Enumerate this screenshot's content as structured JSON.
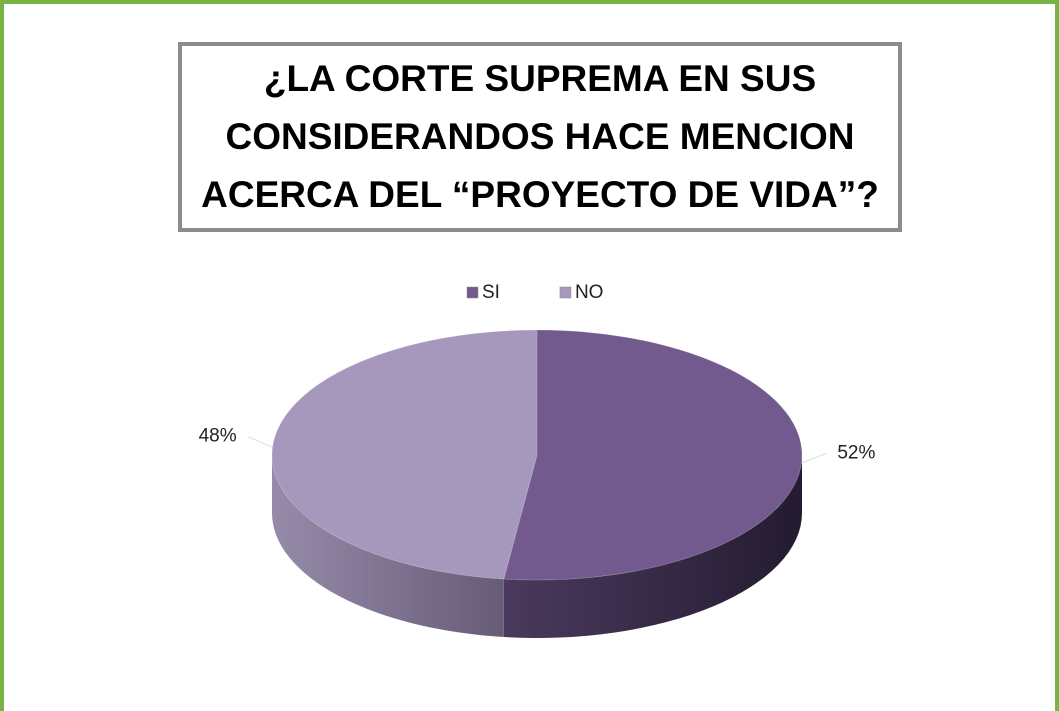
{
  "chart_data": {
    "type": "pie",
    "title": "¿LA CORTE SUPREMA EN SUS CONSIDERANDOS HACE MENCION ACERCA DEL “PROYECTO DE VIDA”?",
    "categories": [
      "SI",
      "NO"
    ],
    "values": [
      52,
      48
    ],
    "value_labels": [
      "52%",
      "48%"
    ],
    "colors": [
      "#725a8e",
      "#a697bd"
    ],
    "legend": "top"
  }
}
